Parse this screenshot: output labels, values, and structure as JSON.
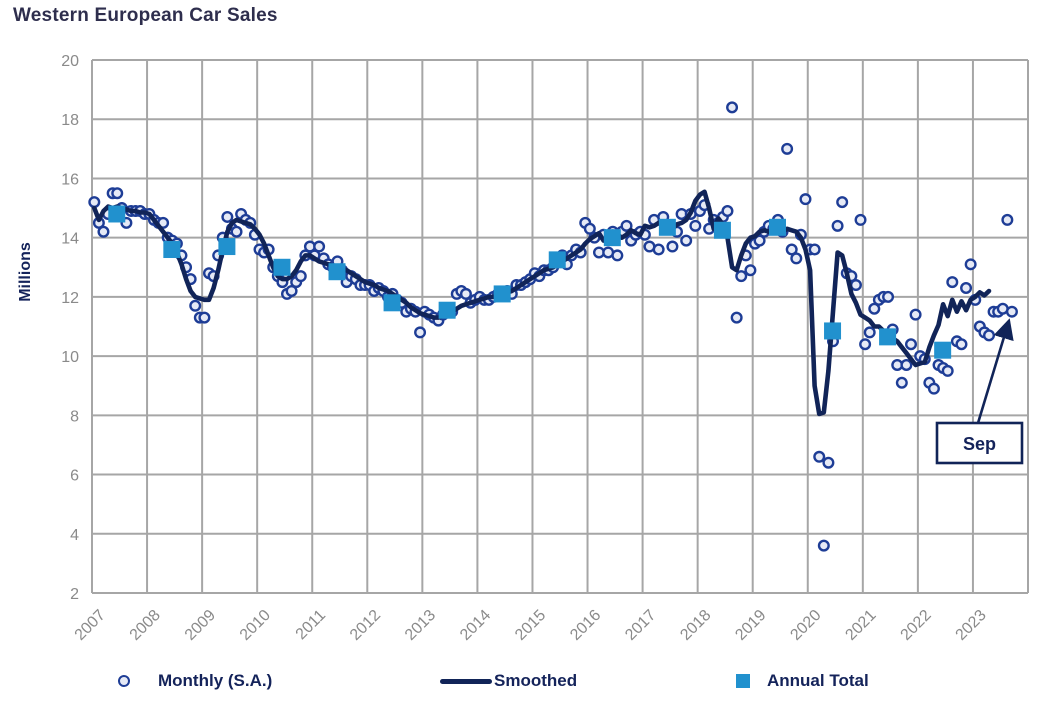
{
  "title": "Western European Car Sales",
  "colors": {
    "smoothed_line": "#112458",
    "monthly_dot_stroke": "#1e3d96",
    "monthly_dot_fill": "#e6eaf6",
    "annual_square": "#2191ce",
    "gridline": "#a6a6a6",
    "tick_text": "#8a8a8a",
    "navy_text": "#14235a",
    "title_text": "#2e2e4d",
    "background": "#ffffff"
  },
  "legend": {
    "items": [
      {
        "label": "Monthly (S.A.)",
        "marker": "circle"
      },
      {
        "label": "Smoothed",
        "marker": "line"
      },
      {
        "label": "Annual Total",
        "marker": "square"
      }
    ]
  },
  "chart_data": {
    "type": "line+scatter",
    "title": "Western European Car Sales",
    "xlabel": "",
    "ylabel": "Millions",
    "ylim": [
      2,
      20
    ],
    "yticks": [
      20,
      18,
      16,
      14,
      12,
      10,
      8,
      6,
      4,
      2
    ],
    "x_years": [
      2007,
      2008,
      2009,
      2010,
      2011,
      2012,
      2013,
      2014,
      2015,
      2016,
      2017,
      2018,
      2019,
      2020,
      2021,
      2022,
      2023
    ],
    "x_range_years": [
      2007,
      2024
    ],
    "grid": true,
    "legend_position": "bottom",
    "series": [
      {
        "name": "Monthly (S.A.)",
        "type": "scatter",
        "start": "2007-01",
        "end": "2023-09",
        "values": [
          15.2,
          14.5,
          14.2,
          14.8,
          15.5,
          15.5,
          15.0,
          14.5,
          14.9,
          14.9,
          14.9,
          14.8,
          14.8,
          14.6,
          14.5,
          14.5,
          14.0,
          13.9,
          13.8,
          13.4,
          13.0,
          12.6,
          11.7,
          11.3,
          11.3,
          12.8,
          12.7,
          13.4,
          14.0,
          14.7,
          14.3,
          14.2,
          14.8,
          14.6,
          14.5,
          14.1,
          13.6,
          13.5,
          13.6,
          13.0,
          12.7,
          12.5,
          12.1,
          12.2,
          12.5,
          12.7,
          13.4,
          13.7,
          13.4,
          13.7,
          13.3,
          13.1,
          13.0,
          13.2,
          12.9,
          12.5,
          12.7,
          12.6,
          12.4,
          12.4,
          12.4,
          12.2,
          12.3,
          12.2,
          12.0,
          12.1,
          11.9,
          11.8,
          11.5,
          11.6,
          11.5,
          10.8,
          11.5,
          11.4,
          11.3,
          11.2,
          11.4,
          11.5,
          11.5,
          12.1,
          12.2,
          12.1,
          11.8,
          11.9,
          12.0,
          11.9,
          11.9,
          12.0,
          12.1,
          12.1,
          12.2,
          12.1,
          12.4,
          12.4,
          12.5,
          12.6,
          12.8,
          12.7,
          12.9,
          12.9,
          13.0,
          13.2,
          13.4,
          13.1,
          13.4,
          13.6,
          13.5,
          14.5,
          14.3,
          14.0,
          13.5,
          14.1,
          13.5,
          14.2,
          13.4,
          14.2,
          14.4,
          13.9,
          14.1,
          14.2,
          14.1,
          13.7,
          14.6,
          13.6,
          14.7,
          14.3,
          13.7,
          14.2,
          14.8,
          13.9,
          14.8,
          14.4,
          14.9,
          15.1,
          14.3,
          14.6,
          14.5,
          14.7,
          14.9,
          18.4,
          11.3,
          12.7,
          13.4,
          12.9,
          13.8,
          13.9,
          14.2,
          14.4,
          14.3,
          14.6,
          14.2,
          17.0,
          13.6,
          13.3,
          14.1,
          15.3,
          13.6,
          13.6,
          6.6,
          3.6,
          6.4,
          10.5,
          14.4,
          15.2,
          12.8,
          12.7,
          12.4,
          14.6,
          10.4,
          10.8,
          11.6,
          11.9,
          12.0,
          12.0,
          10.9,
          9.7,
          9.1,
          9.7,
          10.4,
          11.4,
          10.0,
          9.9,
          9.1,
          8.9,
          9.7,
          9.6,
          9.5,
          12.5,
          10.5,
          10.4,
          12.3,
          13.1,
          11.9,
          11.0,
          10.8,
          10.7,
          11.5,
          11.5,
          11.6,
          14.6,
          11.5
        ]
      },
      {
        "name": "Smoothed",
        "type": "line",
        "start": "2007-01",
        "end": "2023-04",
        "values": [
          15.0,
          14.6,
          14.9,
          15.05,
          15.0,
          15.05,
          15.0,
          14.95,
          14.9,
          14.9,
          14.85,
          14.85,
          14.8,
          14.6,
          14.4,
          14.2,
          14.0,
          13.8,
          13.5,
          13.1,
          12.6,
          12.2,
          12.0,
          11.95,
          11.9,
          11.9,
          12.3,
          12.9,
          13.6,
          14.2,
          14.5,
          14.6,
          14.55,
          14.5,
          14.45,
          14.3,
          14.1,
          13.8,
          13.4,
          13.0,
          12.7,
          12.6,
          12.6,
          12.7,
          12.9,
          13.2,
          13.4,
          13.4,
          13.3,
          13.2,
          13.15,
          13.1,
          13.05,
          13.0,
          12.95,
          12.9,
          12.8,
          12.7,
          12.6,
          12.5,
          12.45,
          12.4,
          12.3,
          12.25,
          12.2,
          12.1,
          12.0,
          11.9,
          11.8,
          11.65,
          11.55,
          11.45,
          11.4,
          11.35,
          11.3,
          11.3,
          11.35,
          11.4,
          11.5,
          11.6,
          11.7,
          11.75,
          11.8,
          11.85,
          11.9,
          11.95,
          12.0,
          12.0,
          12.05,
          12.1,
          12.15,
          12.2,
          12.3,
          12.4,
          12.5,
          12.6,
          12.7,
          12.8,
          12.9,
          12.95,
          13.0,
          13.1,
          13.2,
          13.3,
          13.4,
          13.5,
          13.6,
          13.8,
          13.95,
          14.05,
          14.15,
          13.9,
          14.0,
          14.2,
          14.1,
          14.0,
          14.1,
          14.25,
          14.15,
          14.1,
          14.4,
          14.35,
          14.4,
          14.5,
          14.4,
          14.35,
          14.3,
          14.45,
          14.5,
          14.6,
          14.85,
          15.25,
          15.45,
          15.55,
          15.0,
          14.3,
          14.65,
          14.45,
          14.0,
          13.0,
          12.9,
          13.4,
          13.8,
          14.0,
          14.05,
          14.2,
          14.25,
          14.2,
          14.3,
          14.25,
          14.2,
          14.3,
          14.25,
          14.2,
          14.0,
          13.6,
          12.9,
          9.0,
          8.05,
          8.1,
          9.5,
          11.5,
          13.5,
          13.4,
          12.8,
          12.1,
          11.8,
          11.4,
          11.3,
          11.2,
          11.0,
          11.0,
          10.85,
          10.8,
          10.6,
          10.5,
          10.3,
          10.1,
          9.9,
          9.7,
          9.75,
          9.8,
          10.3,
          10.7,
          11.05,
          11.75,
          11.35,
          11.9,
          11.5,
          11.85,
          11.55,
          11.9,
          12.0,
          12.15,
          12.05,
          12.2
        ]
      },
      {
        "name": "Annual Total",
        "type": "square-scatter",
        "years": [
          2007,
          2008,
          2009,
          2010,
          2011,
          2012,
          2013,
          2014,
          2015,
          2016,
          2017,
          2018,
          2019,
          2020,
          2021,
          2022
        ],
        "values": [
          14.8,
          13.6,
          13.7,
          13.0,
          12.85,
          11.8,
          11.55,
          12.1,
          13.25,
          14.0,
          14.35,
          14.25,
          14.35,
          10.85,
          10.65,
          10.2
        ]
      }
    ],
    "annotation": {
      "label": "Sep",
      "points_to": "2023-09",
      "target_value": 11.5,
      "box": {
        "x": 937,
        "y": 423,
        "w": 85,
        "h": 40
      }
    }
  }
}
